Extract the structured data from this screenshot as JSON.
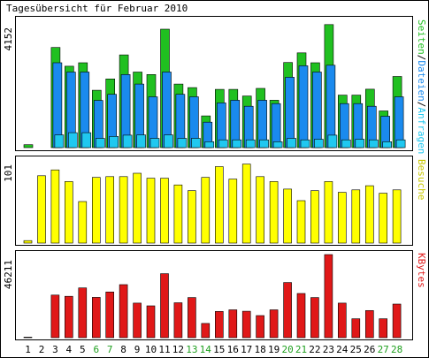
{
  "title": "Tagesübersicht für Februar 2010",
  "colors": {
    "seiten": "#20c020",
    "dateien": "#1a8aee",
    "anfragen": "#20c8f0",
    "besuche": "#ffff00",
    "kbytes": "#e01818",
    "weekend_label": "#20a020",
    "weekday_label": "#000000",
    "frame": "#000000"
  },
  "chart_data": [
    {
      "type": "bar",
      "name": "hits",
      "ymax_label": "4152",
      "ylim": [
        0,
        4152
      ],
      "legend_parts": [
        "Seiten",
        "/",
        "Dateien",
        "/",
        "Anfragen"
      ],
      "legend_colors": [
        "#20c020",
        "#000000",
        "#1a8aee",
        "#000000",
        "#20c8f0"
      ],
      "categories": [
        "1",
        "2",
        "3",
        "4",
        "5",
        "6",
        "7",
        "8",
        "9",
        "10",
        "11",
        "12",
        "13",
        "14",
        "15",
        "16",
        "17",
        "18",
        "19",
        "20",
        "21",
        "22",
        "23",
        "24",
        "25",
        "26",
        "27",
        "28"
      ],
      "series": [
        {
          "name": "Seiten",
          "values": [
            95,
            0,
            3221,
            2619,
            2730,
            1847,
            2210,
            2982,
            2432,
            2351,
            3810,
            2044,
            1930,
            1022,
            1875,
            1875,
            1660,
            1905,
            1523,
            2740,
            3050,
            2730,
            3960,
            1690,
            1690,
            1880,
            1180,
            2290
          ]
        },
        {
          "name": "Dateien",
          "values": [
            0,
            0,
            2730,
            2432,
            2432,
            1519,
            1715,
            2351,
            2044,
            1635,
            2432,
            1715,
            1635,
            820,
            1440,
            1523,
            1330,
            1523,
            1416,
            2264,
            2632,
            2432,
            2650,
            1416,
            1416,
            1330,
            1010,
            1635
          ]
        },
        {
          "name": "Anfragen",
          "values": [
            0,
            0,
            410,
            480,
            480,
            300,
            360,
            400,
            410,
            300,
            410,
            300,
            300,
            190,
            250,
            250,
            250,
            250,
            190,
            300,
            250,
            270,
            400,
            250,
            270,
            250,
            190,
            250
          ]
        }
      ]
    },
    {
      "type": "bar",
      "name": "besuche",
      "ymax_label": "101",
      "ylim": [
        0,
        101
      ],
      "legend_parts": [
        "Besuche"
      ],
      "legend_colors": [
        "#c8c800"
      ],
      "categories": [
        "1",
        "2",
        "3",
        "4",
        "5",
        "6",
        "7",
        "8",
        "9",
        "10",
        "11",
        "12",
        "13",
        "14",
        "15",
        "16",
        "17",
        "18",
        "19",
        "20",
        "21",
        "22",
        "23",
        "24",
        "25",
        "26",
        "27",
        "28"
      ],
      "series": [
        {
          "name": "Besuche",
          "values": [
            3,
            81,
            88,
            74,
            50,
            79,
            80,
            80,
            84,
            78,
            78,
            70,
            63,
            79,
            92,
            77,
            95,
            80,
            74,
            65,
            51,
            63,
            74,
            61,
            64,
            69,
            60,
            64
          ]
        }
      ]
    },
    {
      "type": "bar",
      "name": "kbytes",
      "ymax_label": "46211",
      "ylim": [
        0,
        46211
      ],
      "legend_parts": [
        "KBytes"
      ],
      "legend_colors": [
        "#e01818"
      ],
      "categories": [
        "1",
        "2",
        "3",
        "4",
        "5",
        "6",
        "7",
        "8",
        "9",
        "10",
        "11",
        "12",
        "13",
        "14",
        "15",
        "16",
        "17",
        "18",
        "19",
        "20",
        "21",
        "22",
        "23",
        "24",
        "25",
        "26",
        "27",
        "28"
      ],
      "series": [
        {
          "name": "KBytes",
          "values": [
            300,
            0,
            23700,
            23000,
            27700,
            22400,
            25400,
            29500,
            19200,
            17700,
            35600,
            19400,
            22300,
            7900,
            14600,
            15500,
            14700,
            12300,
            15500,
            30700,
            24600,
            22300,
            46211,
            19200,
            10500,
            15100,
            10500,
            18700
          ]
        }
      ]
    }
  ],
  "x_labels": [
    "1",
    "2",
    "3",
    "4",
    "5",
    "6",
    "7",
    "8",
    "9",
    "10",
    "11",
    "12",
    "13",
    "14",
    "15",
    "16",
    "17",
    "18",
    "19",
    "20",
    "21",
    "22",
    "23",
    "24",
    "25",
    "26",
    "27",
    "28"
  ],
  "weekend_days": [
    "6",
    "7",
    "13",
    "14",
    "20",
    "21",
    "27",
    "28"
  ]
}
